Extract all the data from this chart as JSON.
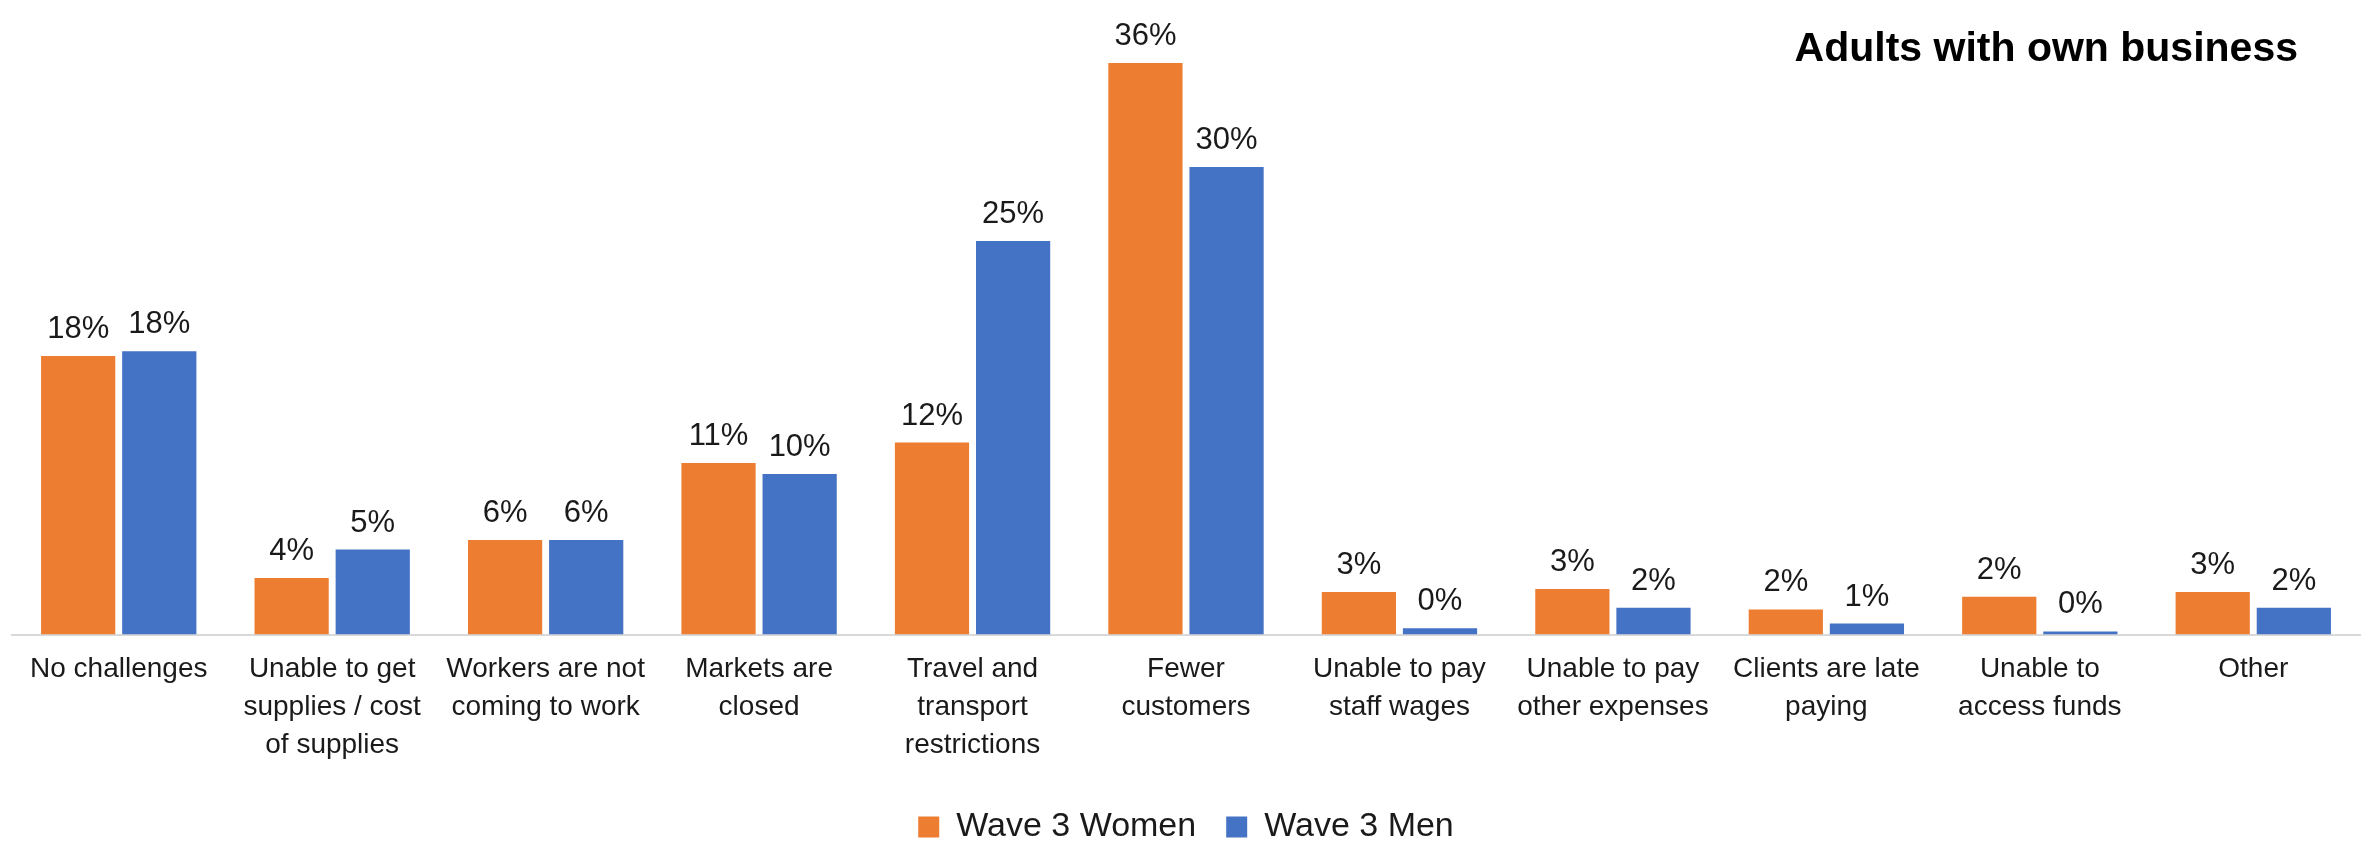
{
  "chart_data": {
    "type": "bar",
    "title": "Adults with own business",
    "categories": [
      "No challenges",
      "Unable to get supplies / cost of supplies",
      "Workers are not coming to work",
      "Markets are closed",
      "Travel and transport restrictions",
      "Fewer customers",
      "Unable to pay staff wages",
      "Unable to pay other expenses",
      "Clients are late paying",
      "Unable to access funds",
      "Other"
    ],
    "series": [
      {
        "name": "Wave 3 Women",
        "color": "#ed7d31",
        "values": [
          17.7,
          3.6,
          6.0,
          10.9,
          12.2,
          36.3,
          2.7,
          2.9,
          1.6,
          2.4,
          2.7
        ],
        "value_labels": [
          "18%",
          "4%",
          "6%",
          "11%",
          "12%",
          "36%",
          "3%",
          "3%",
          "2%",
          "2%",
          "3%"
        ]
      },
      {
        "name": "Wave 3 Men",
        "color": "#4472c4",
        "values": [
          18.0,
          5.4,
          6.0,
          10.2,
          25.0,
          29.7,
          0.4,
          1.7,
          0.7,
          0.2,
          1.7
        ],
        "value_labels": [
          "18%",
          "5%",
          "6%",
          "10%",
          "25%",
          "30%",
          "0%",
          "2%",
          "1%",
          "0%",
          "2%"
        ]
      }
    ],
    "legend": "bottom"
  }
}
